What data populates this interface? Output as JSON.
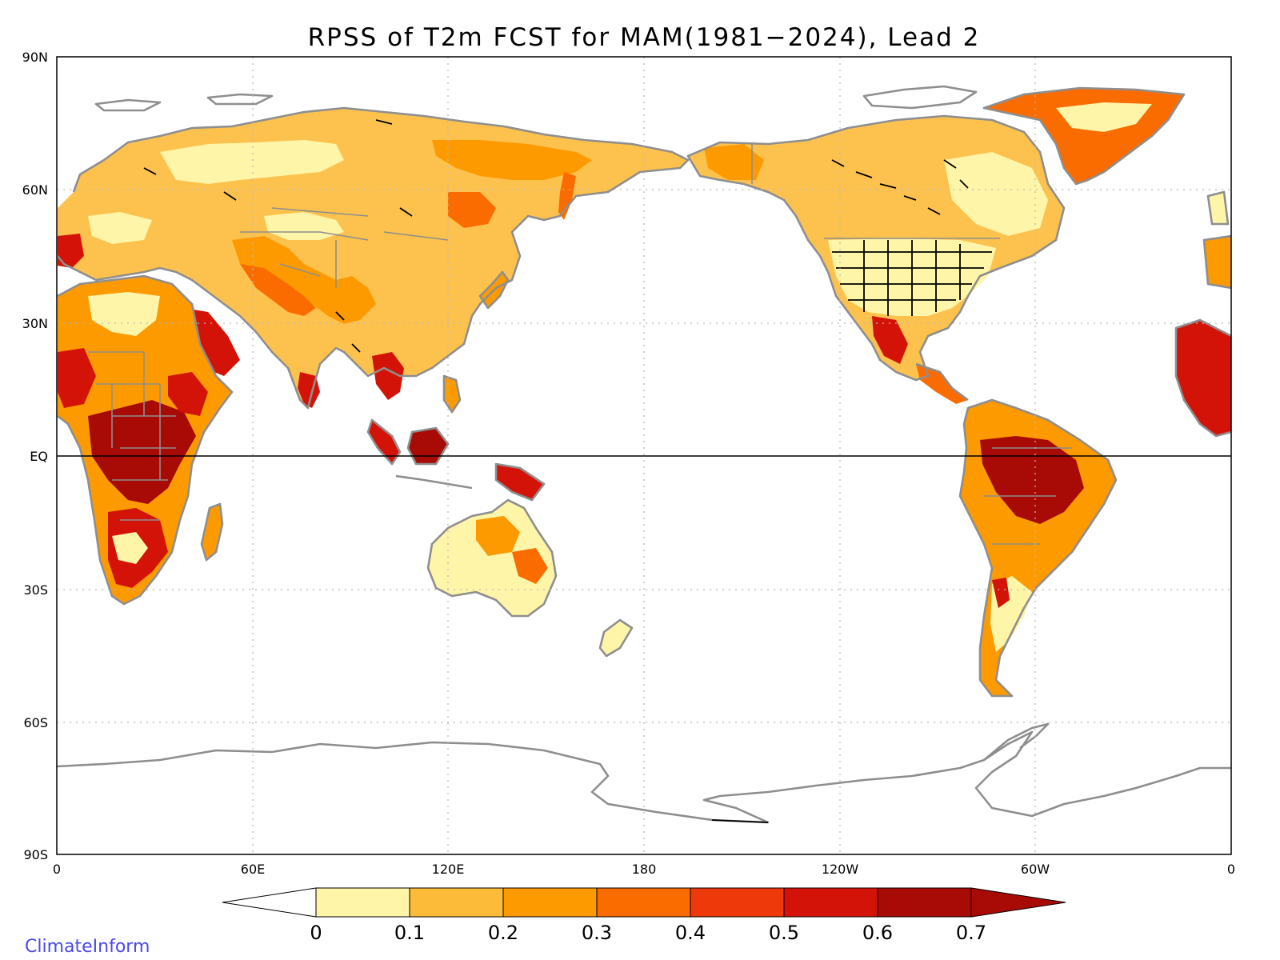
{
  "title": "RPSS of T2m FCST for MAM(1981−2024), Lead 2",
  "credit": "ClimateInform",
  "lat_labels": [
    "90N",
    "60N",
    "30N",
    "EQ",
    "30S",
    "60S",
    "90S"
  ],
  "lon_labels": [
    "0",
    "60E",
    "120E",
    "180",
    "120W",
    "60W",
    "0"
  ],
  "colorbar": {
    "labels": [
      "0",
      "0.1",
      "0.2",
      "0.3",
      "0.4",
      "0.5",
      "0.6",
      "0.7"
    ],
    "colors": [
      "#ffffff",
      "#fff5a8",
      "#fdbb3a",
      "#fd9a00",
      "#fb6c00",
      "#ee3a0b",
      "#d41308",
      "#a80a05",
      "#a80a05"
    ]
  },
  "colors": {
    "coastline": "#8e8e8e",
    "lakes": "#000000",
    "credit": "#4a4ae8"
  }
}
